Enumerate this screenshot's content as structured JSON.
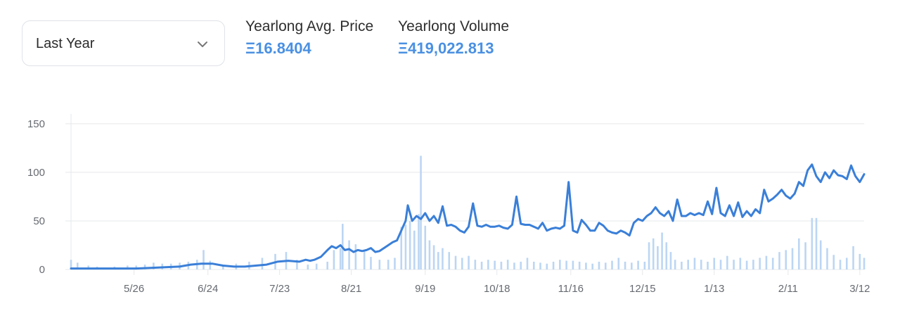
{
  "filter": {
    "selected": "Last Year"
  },
  "stats": {
    "avg_price_label": "Yearlong Avg. Price",
    "avg_price_value": "Ξ16.8404",
    "volume_label": "Yearlong Volume",
    "volume_value": "Ξ419,022.813"
  },
  "colors": {
    "accent": "#4a90e2",
    "line": "#3a7fd8",
    "bar": "#bcd6f3",
    "grid": "#e6e8eb"
  },
  "chart_data": {
    "type": "line",
    "title": "",
    "xlabel": "",
    "ylabel": "",
    "ylim": [
      0,
      160
    ],
    "xlim": [
      0,
      365
    ],
    "y_ticks": [
      0,
      50,
      100,
      150
    ],
    "x_ticks": [
      {
        "day": 29,
        "label": "5/26"
      },
      {
        "day": 63,
        "label": "6/24"
      },
      {
        "day": 96,
        "label": "7/23"
      },
      {
        "day": 129,
        "label": "8/21"
      },
      {
        "day": 163,
        "label": "9/19"
      },
      {
        "day": 196,
        "label": "10/18"
      },
      {
        "day": 230,
        "label": "11/16"
      },
      {
        "day": 263,
        "label": "12/15"
      },
      {
        "day": 296,
        "label": "1/13"
      },
      {
        "day": 330,
        "label": "2/11"
      },
      {
        "day": 363,
        "label": "3/12"
      }
    ],
    "grid": true,
    "series": [
      {
        "kind": "line",
        "points": [
          [
            0,
            1
          ],
          [
            10,
            1
          ],
          [
            20,
            1
          ],
          [
            30,
            1
          ],
          [
            40,
            2
          ],
          [
            50,
            3
          ],
          [
            55,
            5
          ],
          [
            60,
            6
          ],
          [
            65,
            6
          ],
          [
            70,
            4
          ],
          [
            75,
            3
          ],
          [
            80,
            3
          ],
          [
            85,
            4
          ],
          [
            90,
            5
          ],
          [
            95,
            8
          ],
          [
            100,
            9
          ],
          [
            105,
            8
          ],
          [
            108,
            10
          ],
          [
            110,
            9
          ],
          [
            112,
            10
          ],
          [
            115,
            13
          ],
          [
            118,
            20
          ],
          [
            120,
            24
          ],
          [
            122,
            22
          ],
          [
            124,
            25
          ],
          [
            126,
            20
          ],
          [
            128,
            21
          ],
          [
            130,
            18
          ],
          [
            132,
            20
          ],
          [
            134,
            19
          ],
          [
            136,
            20
          ],
          [
            138,
            22
          ],
          [
            140,
            18
          ],
          [
            142,
            19
          ],
          [
            144,
            22
          ],
          [
            146,
            25
          ],
          [
            148,
            28
          ],
          [
            150,
            30
          ],
          [
            152,
            40
          ],
          [
            154,
            50
          ],
          [
            155,
            66
          ],
          [
            157,
            50
          ],
          [
            159,
            55
          ],
          [
            161,
            52
          ],
          [
            163,
            58
          ],
          [
            165,
            50
          ],
          [
            167,
            55
          ],
          [
            169,
            48
          ],
          [
            171,
            65
          ],
          [
            173,
            45
          ],
          [
            175,
            46
          ],
          [
            177,
            44
          ],
          [
            179,
            40
          ],
          [
            181,
            38
          ],
          [
            183,
            44
          ],
          [
            185,
            68
          ],
          [
            187,
            45
          ],
          [
            189,
            44
          ],
          [
            191,
            46
          ],
          [
            193,
            44
          ],
          [
            195,
            44
          ],
          [
            197,
            45
          ],
          [
            199,
            43
          ],
          [
            201,
            42
          ],
          [
            203,
            46
          ],
          [
            205,
            75
          ],
          [
            207,
            47
          ],
          [
            209,
            46
          ],
          [
            211,
            46
          ],
          [
            213,
            44
          ],
          [
            215,
            42
          ],
          [
            217,
            48
          ],
          [
            219,
            40
          ],
          [
            221,
            42
          ],
          [
            223,
            43
          ],
          [
            225,
            42
          ],
          [
            227,
            45
          ],
          [
            229,
            90
          ],
          [
            231,
            40
          ],
          [
            233,
            38
          ],
          [
            235,
            51
          ],
          [
            237,
            46
          ],
          [
            239,
            40
          ],
          [
            241,
            40
          ],
          [
            243,
            48
          ],
          [
            245,
            45
          ],
          [
            247,
            40
          ],
          [
            249,
            38
          ],
          [
            251,
            37
          ],
          [
            253,
            40
          ],
          [
            255,
            38
          ],
          [
            257,
            35
          ],
          [
            259,
            48
          ],
          [
            261,
            52
          ],
          [
            263,
            50
          ],
          [
            265,
            55
          ],
          [
            267,
            58
          ],
          [
            269,
            64
          ],
          [
            271,
            58
          ],
          [
            273,
            55
          ],
          [
            275,
            60
          ],
          [
            277,
            50
          ],
          [
            279,
            72
          ],
          [
            281,
            55
          ],
          [
            283,
            55
          ],
          [
            285,
            58
          ],
          [
            287,
            56
          ],
          [
            289,
            58
          ],
          [
            291,
            56
          ],
          [
            293,
            70
          ],
          [
            295,
            57
          ],
          [
            297,
            84
          ],
          [
            299,
            58
          ],
          [
            301,
            55
          ],
          [
            303,
            66
          ],
          [
            305,
            55
          ],
          [
            307,
            69
          ],
          [
            309,
            54
          ],
          [
            311,
            60
          ],
          [
            313,
            55
          ],
          [
            315,
            62
          ],
          [
            317,
            58
          ],
          [
            319,
            82
          ],
          [
            321,
            70
          ],
          [
            323,
            73
          ],
          [
            325,
            77
          ],
          [
            327,
            82
          ],
          [
            329,
            76
          ],
          [
            331,
            73
          ],
          [
            333,
            78
          ],
          [
            335,
            90
          ],
          [
            337,
            86
          ],
          [
            339,
            102
          ],
          [
            341,
            108
          ],
          [
            343,
            96
          ],
          [
            345,
            90
          ],
          [
            347,
            100
          ],
          [
            349,
            94
          ],
          [
            351,
            102
          ],
          [
            353,
            97
          ],
          [
            355,
            96
          ],
          [
            357,
            93
          ],
          [
            359,
            107
          ],
          [
            361,
            96
          ],
          [
            363,
            90
          ],
          [
            365,
            98
          ]
        ]
      },
      {
        "kind": "bar",
        "values": [
          [
            0,
            10
          ],
          [
            3,
            7
          ],
          [
            8,
            4
          ],
          [
            12,
            3
          ],
          [
            20,
            3
          ],
          [
            26,
            4
          ],
          [
            30,
            4
          ],
          [
            34,
            5
          ],
          [
            38,
            7
          ],
          [
            42,
            6
          ],
          [
            46,
            6
          ],
          [
            50,
            7
          ],
          [
            54,
            8
          ],
          [
            58,
            10
          ],
          [
            61,
            20
          ],
          [
            64,
            9
          ],
          [
            70,
            5
          ],
          [
            76,
            6
          ],
          [
            82,
            8
          ],
          [
            88,
            12
          ],
          [
            94,
            16
          ],
          [
            99,
            18
          ],
          [
            104,
            10
          ],
          [
            109,
            5
          ],
          [
            113,
            6
          ],
          [
            118,
            8
          ],
          [
            121,
            20
          ],
          [
            124,
            22
          ],
          [
            125,
            47
          ],
          [
            128,
            30
          ],
          [
            131,
            26
          ],
          [
            135,
            19
          ],
          [
            138,
            13
          ],
          [
            142,
            10
          ],
          [
            146,
            10
          ],
          [
            149,
            12
          ],
          [
            152,
            44
          ],
          [
            154,
            46
          ],
          [
            156,
            50
          ],
          [
            158,
            40
          ],
          [
            160,
            57
          ],
          [
            161,
            117
          ],
          [
            163,
            45
          ],
          [
            165,
            30
          ],
          [
            167,
            25
          ],
          [
            169,
            18
          ],
          [
            171,
            22
          ],
          [
            174,
            18
          ],
          [
            177,
            14
          ],
          [
            180,
            12
          ],
          [
            183,
            14
          ],
          [
            186,
            10
          ],
          [
            189,
            8
          ],
          [
            192,
            10
          ],
          [
            195,
            9
          ],
          [
            198,
            8
          ],
          [
            201,
            10
          ],
          [
            204,
            7
          ],
          [
            207,
            8
          ],
          [
            210,
            12
          ],
          [
            213,
            8
          ],
          [
            216,
            7
          ],
          [
            219,
            6
          ],
          [
            222,
            8
          ],
          [
            225,
            10
          ],
          [
            228,
            9
          ],
          [
            231,
            9
          ],
          [
            234,
            8
          ],
          [
            237,
            7
          ],
          [
            240,
            6
          ],
          [
            243,
            8
          ],
          [
            246,
            7
          ],
          [
            249,
            9
          ],
          [
            252,
            12
          ],
          [
            255,
            8
          ],
          [
            258,
            7
          ],
          [
            261,
            9
          ],
          [
            264,
            8
          ],
          [
            266,
            28
          ],
          [
            268,
            32
          ],
          [
            270,
            24
          ],
          [
            272,
            38
          ],
          [
            274,
            28
          ],
          [
            276,
            18
          ],
          [
            278,
            10
          ],
          [
            281,
            8
          ],
          [
            284,
            10
          ],
          [
            287,
            12
          ],
          [
            290,
            10
          ],
          [
            293,
            8
          ],
          [
            296,
            12
          ],
          [
            299,
            10
          ],
          [
            302,
            14
          ],
          [
            305,
            10
          ],
          [
            308,
            12
          ],
          [
            311,
            9
          ],
          [
            314,
            10
          ],
          [
            317,
            12
          ],
          [
            320,
            14
          ],
          [
            323,
            12
          ],
          [
            326,
            18
          ],
          [
            329,
            20
          ],
          [
            332,
            22
          ],
          [
            335,
            32
          ],
          [
            338,
            28
          ],
          [
            341,
            53
          ],
          [
            343,
            53
          ],
          [
            345,
            30
          ],
          [
            348,
            22
          ],
          [
            351,
            15
          ],
          [
            354,
            10
          ],
          [
            357,
            12
          ],
          [
            360,
            24
          ],
          [
            363,
            16
          ],
          [
            365,
            12
          ]
        ]
      }
    ]
  }
}
